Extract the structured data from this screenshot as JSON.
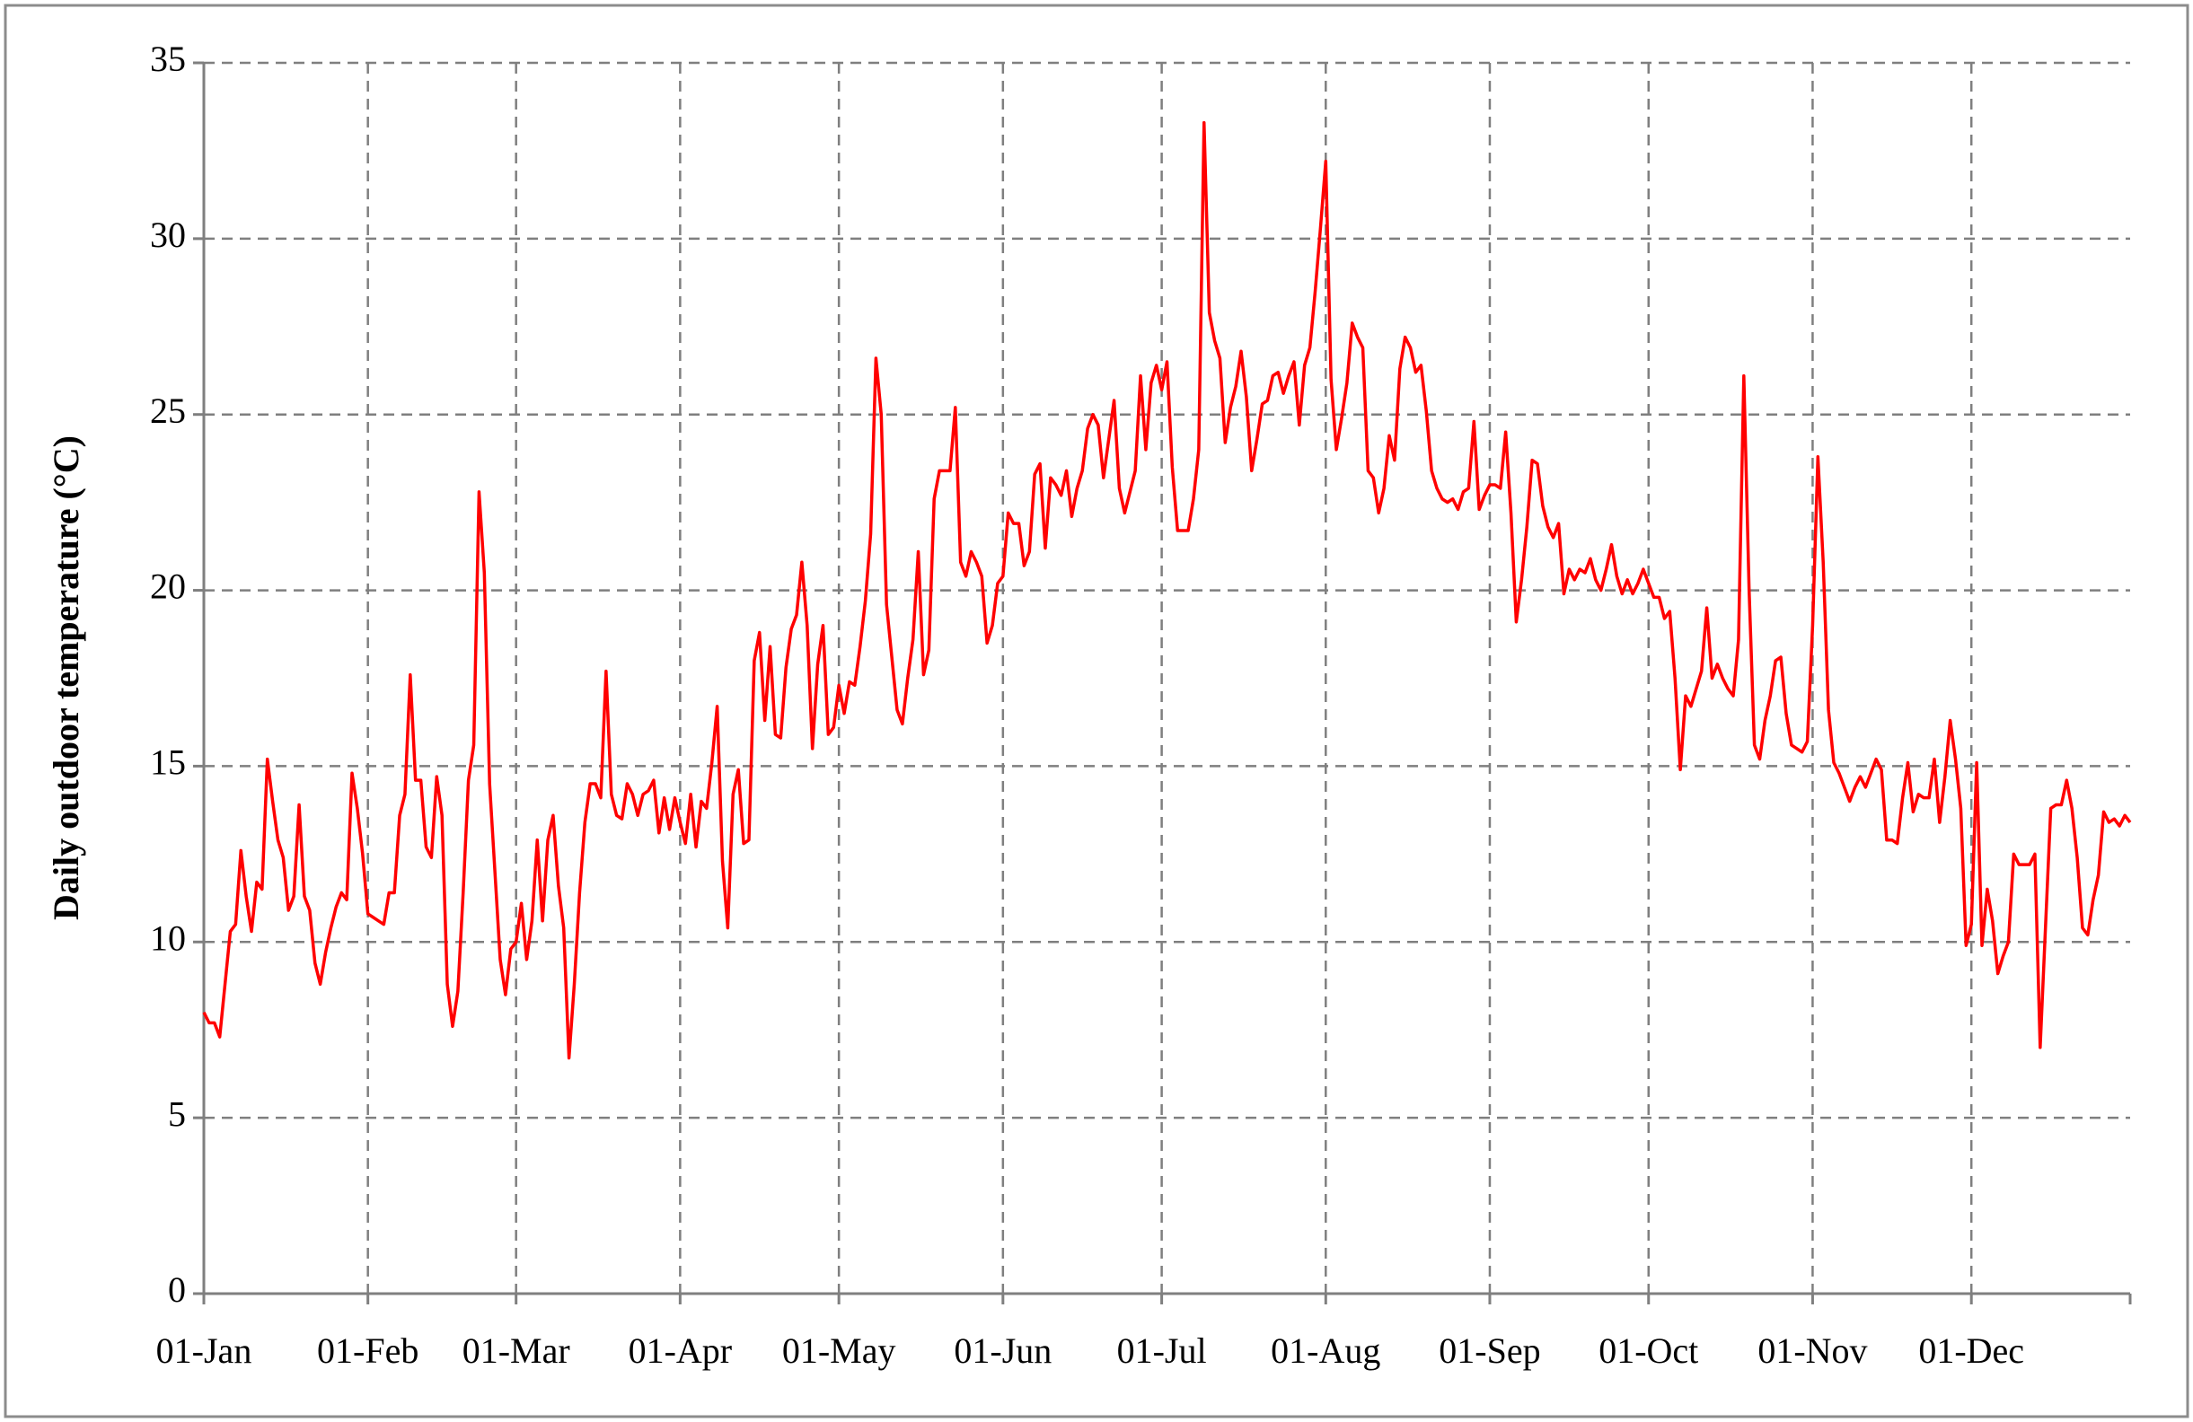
{
  "chart_data": {
    "type": "line",
    "y_label": "Daily outdoor temperature (°C)",
    "x": [
      0,
      1,
      2,
      3,
      4,
      5,
      6,
      7,
      8,
      9,
      10,
      11,
      12,
      13,
      14,
      15,
      16,
      17,
      18,
      19,
      20,
      21,
      22,
      23,
      24,
      25,
      26,
      27,
      28,
      29,
      30,
      31,
      32,
      33,
      34,
      35,
      36,
      37,
      38,
      39,
      40,
      41,
      42,
      43,
      44,
      45,
      46,
      47,
      48,
      49,
      50,
      51,
      52,
      53,
      54,
      55,
      56,
      57,
      58,
      59,
      60,
      61,
      62,
      63,
      64,
      65,
      66,
      67,
      68,
      69,
      70,
      71,
      72,
      73,
      74,
      75,
      76,
      77,
      78,
      79,
      80,
      81,
      82,
      83,
      84,
      85,
      86,
      87,
      88,
      89,
      90,
      91,
      92,
      93,
      94,
      95,
      96,
      97,
      98,
      99,
      100,
      101,
      102,
      103,
      104,
      105,
      106,
      107,
      108,
      109,
      110,
      111,
      112,
      113,
      114,
      115,
      116,
      117,
      118,
      119,
      120,
      121,
      122,
      123,
      124,
      125,
      126,
      127,
      128,
      129,
      130,
      131,
      132,
      133,
      134,
      135,
      136,
      137,
      138,
      139,
      140,
      141,
      142,
      143,
      144,
      145,
      146,
      147,
      148,
      149,
      150,
      151,
      152,
      153,
      154,
      155,
      156,
      157,
      158,
      159,
      160,
      161,
      162,
      163,
      164,
      165,
      166,
      167,
      168,
      169,
      170,
      171,
      172,
      173,
      174,
      175,
      176,
      177,
      178,
      179,
      180,
      181,
      182,
      183,
      184,
      185,
      186,
      187,
      188,
      189,
      190,
      191,
      192,
      193,
      194,
      195,
      196,
      197,
      198,
      199,
      200,
      201,
      202,
      203,
      204,
      205,
      206,
      207,
      208,
      209,
      210,
      211,
      212,
      213,
      214,
      215,
      216,
      217,
      218,
      219,
      220,
      221,
      222,
      223,
      224,
      225,
      226,
      227,
      228,
      229,
      230,
      231,
      232,
      233,
      234,
      235,
      236,
      237,
      238,
      239,
      240,
      241,
      242,
      243,
      244,
      245,
      246,
      247,
      248,
      249,
      250,
      251,
      252,
      253,
      254,
      255,
      256,
      257,
      258,
      259,
      260,
      261,
      262,
      263,
      264,
      265,
      266,
      267,
      268,
      269,
      270,
      271,
      272,
      273,
      274,
      275,
      276,
      277,
      278,
      279,
      280,
      281,
      282,
      283,
      284,
      285,
      286,
      287,
      288,
      289,
      290,
      291,
      292,
      293,
      294,
      295,
      296,
      297,
      298,
      299,
      300,
      301,
      302,
      303,
      304,
      305,
      306,
      307,
      308,
      309,
      310,
      311,
      312,
      313,
      314,
      315,
      316,
      317,
      318,
      319,
      320,
      321,
      322,
      323,
      324,
      325,
      326,
      327,
      328,
      329,
      330,
      331,
      332,
      333,
      334,
      335,
      336,
      337,
      338,
      339,
      340,
      341,
      342,
      343,
      344,
      345,
      346,
      347,
      348,
      349,
      350,
      351,
      352,
      353,
      354,
      355,
      356,
      357,
      358,
      359,
      360,
      361,
      362,
      363,
      364
    ],
    "series": [
      {
        "color": "#ff0000",
        "values": [
          8.0,
          7.7,
          7.7,
          7.3,
          8.8,
          10.3,
          10.5,
          12.6,
          11.3,
          10.3,
          11.7,
          11.5,
          15.2,
          14.0,
          12.9,
          12.4,
          10.9,
          11.3,
          13.9,
          11.3,
          10.9,
          9.4,
          8.8,
          9.7,
          10.4,
          11.0,
          11.4,
          11.2,
          14.8,
          13.8,
          12.5,
          10.8,
          10.7,
          10.6,
          10.5,
          11.4,
          11.4,
          13.6,
          14.2,
          17.6,
          14.6,
          14.6,
          12.7,
          12.4,
          14.7,
          13.6,
          8.8,
          7.6,
          8.6,
          11.4,
          14.6,
          15.6,
          22.8,
          20.5,
          14.5,
          12.0,
          9.5,
          8.5,
          9.8,
          10.0,
          11.1,
          9.5,
          10.6,
          12.9,
          10.6,
          12.9,
          13.6,
          11.6,
          10.4,
          6.7,
          8.8,
          11.4,
          13.4,
          14.5,
          14.5,
          14.1,
          17.7,
          14.2,
          13.6,
          13.5,
          14.5,
          14.2,
          13.6,
          14.2,
          14.3,
          14.6,
          13.1,
          14.1,
          13.2,
          14.1,
          13.4,
          12.8,
          14.2,
          12.7,
          14.0,
          13.8,
          15.1,
          16.7,
          12.3,
          10.4,
          14.2,
          14.9,
          12.8,
          12.9,
          18.0,
          18.8,
          16.3,
          18.4,
          15.9,
          15.8,
          17.8,
          18.9,
          19.3,
          20.8,
          19.0,
          15.5,
          17.9,
          19.0,
          15.9,
          16.1,
          17.3,
          16.5,
          17.4,
          17.3,
          18.4,
          19.7,
          21.6,
          26.6,
          25.0,
          19.6,
          18.1,
          16.6,
          16.2,
          17.5,
          18.6,
          21.1,
          17.6,
          18.3,
          22.6,
          23.4,
          23.4,
          23.4,
          25.2,
          20.8,
          20.4,
          21.1,
          20.8,
          20.4,
          18.5,
          19.0,
          20.2,
          20.4,
          22.2,
          21.9,
          21.9,
          20.7,
          21.1,
          23.3,
          23.6,
          21.2,
          23.2,
          23.0,
          22.7,
          23.4,
          22.1,
          22.9,
          23.4,
          24.6,
          25.0,
          24.7,
          23.2,
          24.3,
          25.4,
          22.9,
          22.2,
          22.8,
          23.4,
          26.1,
          24.0,
          25.9,
          26.4,
          25.7,
          26.5,
          23.5,
          21.7,
          21.7,
          21.7,
          22.6,
          24.0,
          33.3,
          27.9,
          27.1,
          26.6,
          24.2,
          25.2,
          25.8,
          26.8,
          25.5,
          23.4,
          24.3,
          25.3,
          25.4,
          26.1,
          26.2,
          25.6,
          26.1,
          26.5,
          24.7,
          26.4,
          26.9,
          28.5,
          30.3,
          32.2,
          26.0,
          24.0,
          24.9,
          25.9,
          27.6,
          27.2,
          26.9,
          23.4,
          23.2,
          22.2,
          22.9,
          24.4,
          23.7,
          26.3,
          27.2,
          26.9,
          26.2,
          26.4,
          25.1,
          23.4,
          22.9,
          22.6,
          22.5,
          22.6,
          22.3,
          22.8,
          22.9,
          24.8,
          22.3,
          22.7,
          23.0,
          23.0,
          22.9,
          24.5,
          22.2,
          19.1,
          20.3,
          21.8,
          23.7,
          23.6,
          22.4,
          21.8,
          21.5,
          21.9,
          19.9,
          20.6,
          20.3,
          20.6,
          20.5,
          20.9,
          20.3,
          20.0,
          20.6,
          21.3,
          20.4,
          19.9,
          20.3,
          19.9,
          20.2,
          20.6,
          20.2,
          19.8,
          19.8,
          19.2,
          19.4,
          17.5,
          14.9,
          17.0,
          16.7,
          17.2,
          17.7,
          19.5,
          17.5,
          17.9,
          17.5,
          17.2,
          17.0,
          18.6,
          26.1,
          20.0,
          15.6,
          15.2,
          16.3,
          17.0,
          18.0,
          18.1,
          16.5,
          15.6,
          15.5,
          15.4,
          15.7,
          19.0,
          23.8,
          20.8,
          16.6,
          15.1,
          14.8,
          14.4,
          14.0,
          14.4,
          14.7,
          14.4,
          14.8,
          15.2,
          14.9,
          12.9,
          12.9,
          12.8,
          14.1,
          15.1,
          13.7,
          14.2,
          14.1,
          14.1,
          15.2,
          13.4,
          14.7,
          16.3,
          15.2,
          13.8,
          9.9,
          10.5,
          15.1,
          9.9,
          11.5,
          10.6,
          9.1,
          9.6,
          10.0,
          12.5,
          12.2,
          12.2,
          12.2,
          12.5,
          7.0,
          10.4,
          13.8,
          13.9,
          13.9,
          14.6,
          13.8,
          12.4,
          10.4,
          10.2,
          11.2,
          11.9,
          13.7,
          13.4,
          13.5,
          13.3,
          13.6,
          13.4
        ]
      }
    ],
    "xlim": [
      0,
      364
    ],
    "xticks": [
      {
        "value": 0,
        "label": "01-Jan"
      },
      {
        "value": 31,
        "label": "01-Feb"
      },
      {
        "value": 59,
        "label": "01-Mar"
      },
      {
        "value": 90,
        "label": "01-Apr"
      },
      {
        "value": 120,
        "label": "01-May"
      },
      {
        "value": 151,
        "label": "01-Jun"
      },
      {
        "value": 181,
        "label": "01-Jul"
      },
      {
        "value": 212,
        "label": "01-Aug"
      },
      {
        "value": 243,
        "label": "01-Sep"
      },
      {
        "value": 273,
        "label": "01-Oct"
      },
      {
        "value": 304,
        "label": "01-Nov"
      },
      {
        "value": 334,
        "label": "01-Dec"
      }
    ],
    "ylim": [
      0,
      35
    ],
    "yticks": [
      0,
      5,
      10,
      15,
      20,
      25,
      30,
      35
    ],
    "grid": true
  }
}
